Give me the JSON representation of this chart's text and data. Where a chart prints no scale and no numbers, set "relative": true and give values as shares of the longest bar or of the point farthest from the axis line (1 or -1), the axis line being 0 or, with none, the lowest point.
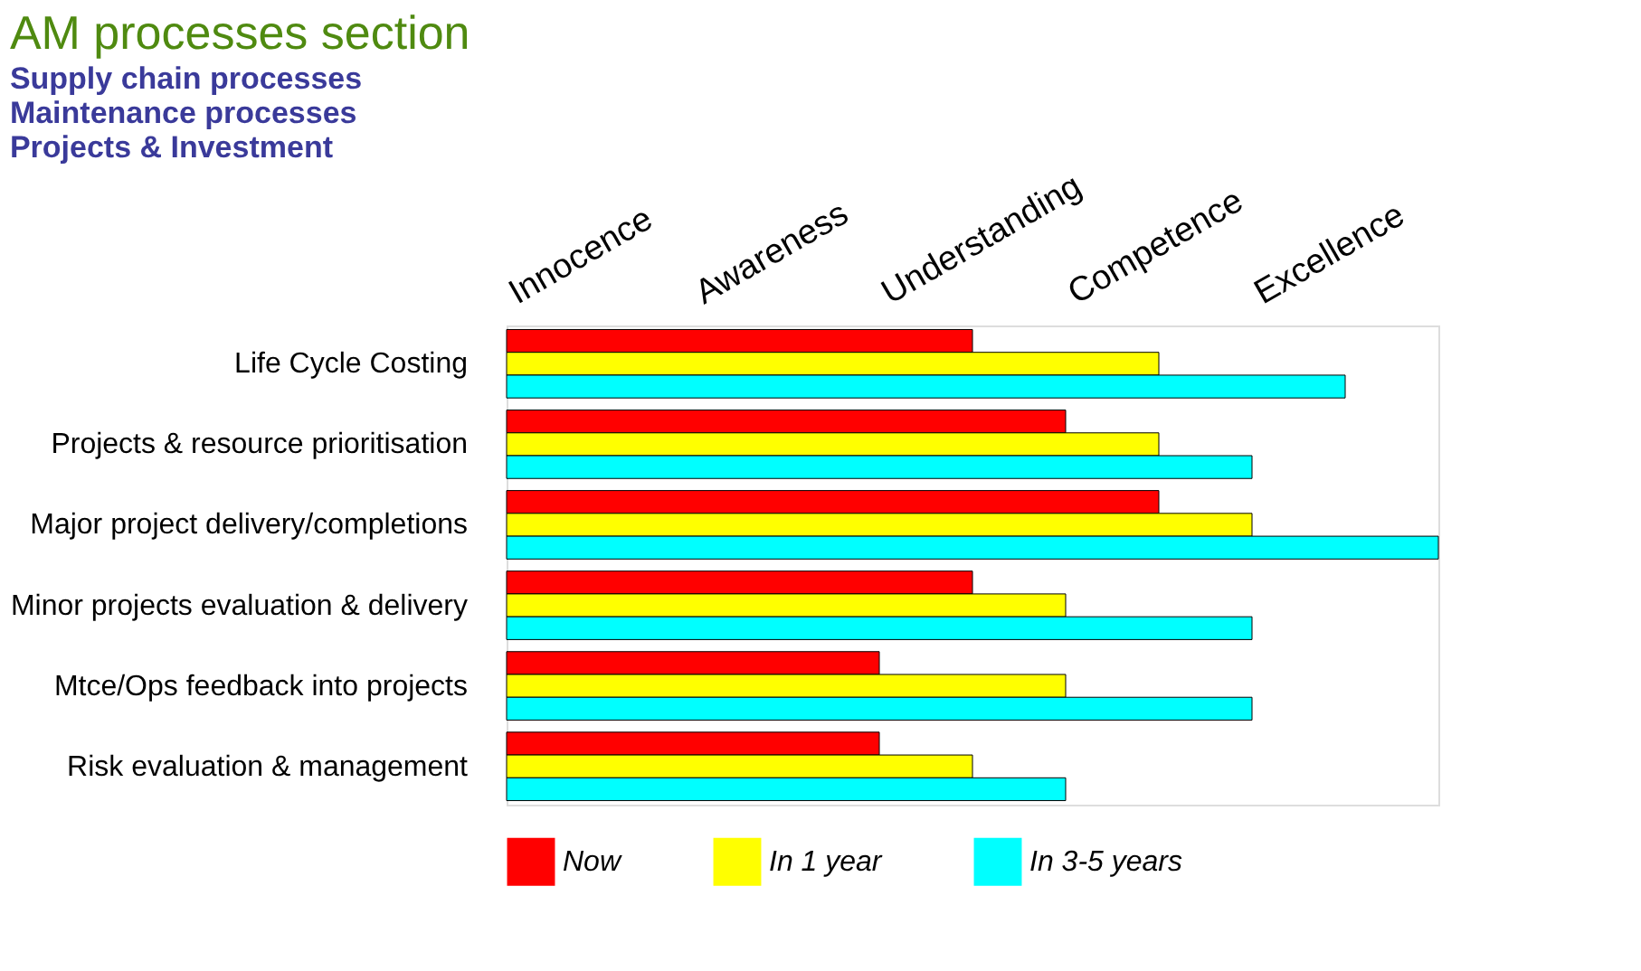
{
  "chart_data": {
    "type": "bar",
    "orientation": "horizontal",
    "relative": true,
    "title": "AM processes section",
    "subtitle": "Projects & Investment",
    "annotations": [
      "Supply chain processes",
      "Maintenance processes",
      "Innocence",
      "Awareness",
      "Understanding",
      "Competence",
      "Excellence"
    ],
    "categories": [
      "Life Cycle Costing",
      "Projects & resource prioritisation",
      "Major project delivery/completions",
      "Minor projects evaluation & delivery",
      "Mtce/Ops feedback into projects",
      "Risk evaluation & management"
    ],
    "series": [
      {
        "name": "Now",
        "color": "#ff0000",
        "values": [
          0.5,
          0.6,
          0.7,
          0.5,
          0.4,
          0.4
        ]
      },
      {
        "name": "In 1 year",
        "color": "#ffff00",
        "values": [
          0.7,
          0.7,
          0.8,
          0.6,
          0.6,
          0.5
        ]
      },
      {
        "name": "In 3-5 years",
        "color": "#00ffff",
        "values": [
          0.9,
          0.8,
          1.0,
          0.8,
          0.8,
          0.6
        ]
      }
    ],
    "legend": "bottom"
  }
}
